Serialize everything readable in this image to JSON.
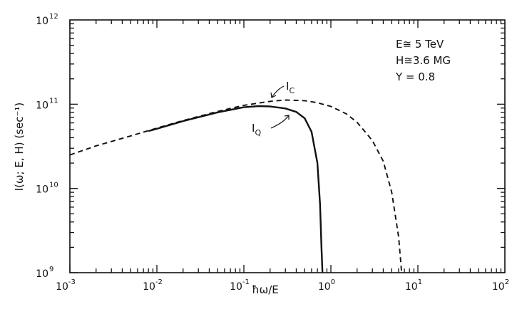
{
  "chart_data": {
    "type": "line",
    "title": "",
    "xlabel": "ħω/E",
    "ylabel": "I(ω; E, H) (sec⁻¹)",
    "xscale": "log",
    "yscale": "log",
    "xlim": [
      0.001,
      100
    ],
    "ylim": [
      1000000000,
      1000000000000
    ],
    "grid": false,
    "x_tick_labels": [
      {
        "base": "10",
        "exp": "-3"
      },
      {
        "base": "10",
        "exp": "-2"
      },
      {
        "base": "10",
        "exp": "-1"
      },
      {
        "base": "10",
        "exp": "0"
      },
      {
        "base": "10",
        "exp": "1"
      },
      {
        "base": "10",
        "exp": "2"
      }
    ],
    "y_tick_labels": [
      {
        "base": "10",
        "exp": "9"
      },
      {
        "base": "10",
        "exp": "10"
      },
      {
        "base": "10",
        "exp": "11"
      },
      {
        "base": "10",
        "exp": "12"
      }
    ],
    "x_tick_values": [
      0.001,
      0.01,
      0.1,
      1,
      10,
      100
    ],
    "y_tick_values": [
      1000000000,
      10000000000,
      100000000000,
      1000000000000
    ],
    "parameters": [
      "E≅ 5 TeV",
      "H≅3.6 MG",
      "Υ = 0.8"
    ],
    "series": [
      {
        "name": "I",
        "subscript": "C",
        "style": "dashed",
        "x": [
          0.001,
          0.002,
          0.005,
          0.01,
          0.02,
          0.05,
          0.1,
          0.2,
          0.3,
          0.5,
          0.7,
          1,
          1.5,
          2,
          3,
          4,
          5,
          6,
          6.3,
          6.5
        ],
        "y": [
          25000000000,
          32000000000,
          42000000000,
          52000000000,
          64000000000,
          82000000000,
          97000000000,
          108000000000,
          112000000000,
          110000000000,
          104000000000,
          94000000000,
          77000000000,
          61000000000,
          37000000000,
          21000000000,
          9000000000,
          2700000000,
          1500000000,
          1000000000
        ]
      },
      {
        "name": "I",
        "subscript": "Q",
        "style": "solid",
        "x": [
          0.008,
          0.01,
          0.02,
          0.05,
          0.1,
          0.15,
          0.2,
          0.3,
          0.4,
          0.5,
          0.6,
          0.7,
          0.75,
          0.78,
          0.8
        ],
        "y": [
          48000000000,
          51000000000,
          63000000000,
          80000000000,
          92000000000,
          95000000000,
          94000000000,
          89000000000,
          81000000000,
          68000000000,
          47000000000,
          20000000000,
          6500000000,
          2000000000,
          1000000000
        ]
      }
    ]
  }
}
